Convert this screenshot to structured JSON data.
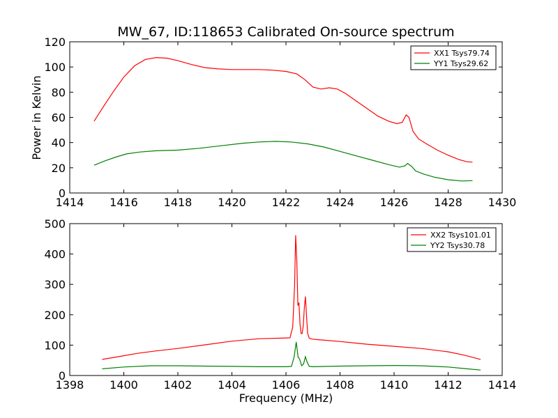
{
  "figure": {
    "title": "MW_67, ID:118653 Calibrated On-source spectrum",
    "ylabel": "Power in Kelvin",
    "xlabel": "Frequency (MHz)"
  },
  "colors": {
    "xx": "#ff0000",
    "yy": "#008000"
  },
  "chart_data": [
    {
      "type": "line",
      "xlim": [
        1414,
        1430
      ],
      "ylim": [
        0,
        120
      ],
      "xticks": [
        1414,
        1416,
        1418,
        1420,
        1422,
        1424,
        1426,
        1428,
        1430
      ],
      "yticks": [
        0,
        20,
        40,
        60,
        80,
        100,
        120
      ],
      "legend_position": "top-right",
      "series": [
        {
          "name": "XX1 Tsys79.74",
          "color": "#ff0000",
          "x": [
            1414.9,
            1415.2,
            1415.6,
            1416.0,
            1416.4,
            1416.8,
            1417.2,
            1417.6,
            1418.0,
            1418.5,
            1419.0,
            1419.5,
            1420.0,
            1420.5,
            1421.0,
            1421.5,
            1422.0,
            1422.4,
            1422.7,
            1423.0,
            1423.3,
            1423.6,
            1423.9,
            1424.2,
            1424.6,
            1425.0,
            1425.4,
            1425.8,
            1426.1,
            1426.3,
            1426.45,
            1426.55,
            1426.7,
            1426.9,
            1427.2,
            1427.6,
            1428.0,
            1428.4,
            1428.7,
            1428.9
          ],
          "y": [
            57,
            67,
            80,
            92,
            101,
            106,
            107.5,
            107,
            105,
            102,
            99.5,
            98.5,
            98,
            98,
            98,
            97.5,
            96.5,
            94.5,
            90,
            84,
            82.5,
            83.5,
            82.5,
            79,
            73,
            67,
            61,
            57,
            55,
            56,
            62,
            60,
            49,
            43,
            39,
            34,
            30,
            26.5,
            24.8,
            24.5
          ]
        },
        {
          "name": "YY1 Tsys29.62",
          "color": "#008000",
          "x": [
            1414.9,
            1415.3,
            1415.7,
            1416.1,
            1416.6,
            1417.2,
            1418.0,
            1418.8,
            1419.6,
            1420.4,
            1421.0,
            1421.6,
            1422.2,
            1422.8,
            1423.4,
            1424.0,
            1424.6,
            1425.2,
            1425.8,
            1426.2,
            1426.4,
            1426.5,
            1426.65,
            1426.8,
            1427.1,
            1427.5,
            1428.0,
            1428.5,
            1428.9
          ],
          "y": [
            22,
            25.5,
            28.5,
            31,
            32.5,
            33.5,
            34,
            35.5,
            37.5,
            39.5,
            40.5,
            41,
            40.5,
            39,
            36.5,
            33,
            29.5,
            26,
            22.5,
            20.5,
            21.5,
            23.5,
            21,
            17.5,
            15,
            12.5,
            10.5,
            9.5,
            9.8
          ]
        }
      ]
    },
    {
      "type": "line",
      "xlim": [
        1398,
        1414
      ],
      "ylim": [
        0,
        500
      ],
      "xticks": [
        1398,
        1400,
        1402,
        1404,
        1406,
        1408,
        1410,
        1412,
        1414
      ],
      "yticks": [
        0,
        100,
        200,
        300,
        400,
        500
      ],
      "legend_position": "top-right",
      "series": [
        {
          "name": "XX2 Tsys101.01",
          "color": "#ff0000",
          "x": [
            1399.2,
            1399.8,
            1400.5,
            1401.2,
            1402.0,
            1403.0,
            1404.0,
            1405.0,
            1405.8,
            1406.15,
            1406.25,
            1406.32,
            1406.36,
            1406.4,
            1406.44,
            1406.48,
            1406.52,
            1406.56,
            1406.6,
            1406.64,
            1406.68,
            1406.72,
            1406.76,
            1406.8,
            1406.86,
            1406.95,
            1407.2,
            1408.0,
            1409.0,
            1410.0,
            1411.0,
            1412.0,
            1412.6,
            1413.2
          ],
          "y": [
            53,
            62,
            73,
            81,
            89,
            101,
            113,
            121,
            123,
            124,
            160,
            300,
            462,
            380,
            230,
            240,
            170,
            138,
            138,
            165,
            225,
            260,
            200,
            140,
            123,
            120,
            118,
            112,
            103,
            96,
            89,
            78,
            67,
            53
          ]
        },
        {
          "name": "YY2 Tsys30.78",
          "color": "#008000",
          "x": [
            1399.2,
            1400.0,
            1401.0,
            1402.0,
            1403.0,
            1404.0,
            1405.0,
            1406.0,
            1406.2,
            1406.3,
            1406.38,
            1406.45,
            1406.5,
            1406.58,
            1406.65,
            1406.72,
            1406.78,
            1406.86,
            1407.0,
            1408.0,
            1409.0,
            1410.0,
            1411.0,
            1412.0,
            1412.6,
            1413.2
          ],
          "y": [
            22,
            28,
            32,
            32,
            31,
            30,
            29,
            29,
            30,
            60,
            110,
            60,
            55,
            32,
            38,
            62,
            45,
            30,
            29,
            31,
            32,
            33,
            32,
            28,
            23,
            18
          ]
        }
      ]
    }
  ]
}
